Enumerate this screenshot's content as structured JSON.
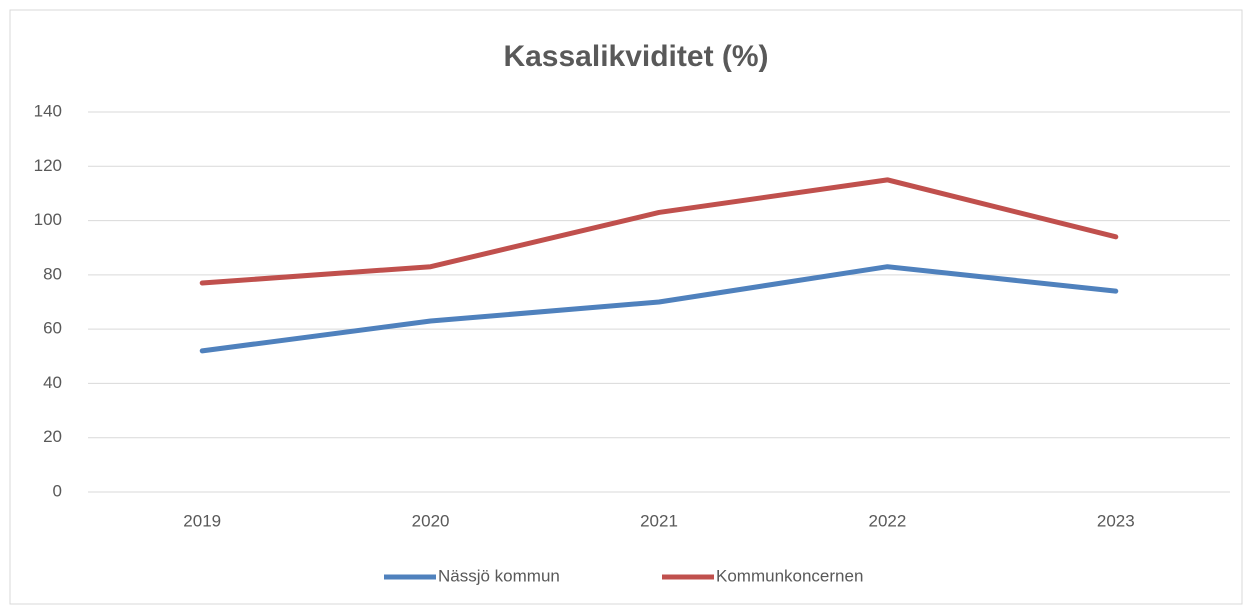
{
  "chart_data": {
    "type": "line",
    "title": "Kassalikviditet (%)",
    "categories": [
      "2019",
      "2020",
      "2021",
      "2022",
      "2023"
    ],
    "series": [
      {
        "name": "Nässjö kommun",
        "color": "#4f81bd",
        "values": [
          52,
          63,
          70,
          83,
          74
        ]
      },
      {
        "name": "Kommunkoncernen",
        "color": "#c0504d",
        "values": [
          77,
          83,
          103,
          115,
          94
        ]
      }
    ],
    "ylim": [
      0,
      140
    ],
    "yticks": [
      0,
      20,
      40,
      60,
      80,
      100,
      120,
      140
    ],
    "grid": true,
    "legend": "bottom"
  }
}
